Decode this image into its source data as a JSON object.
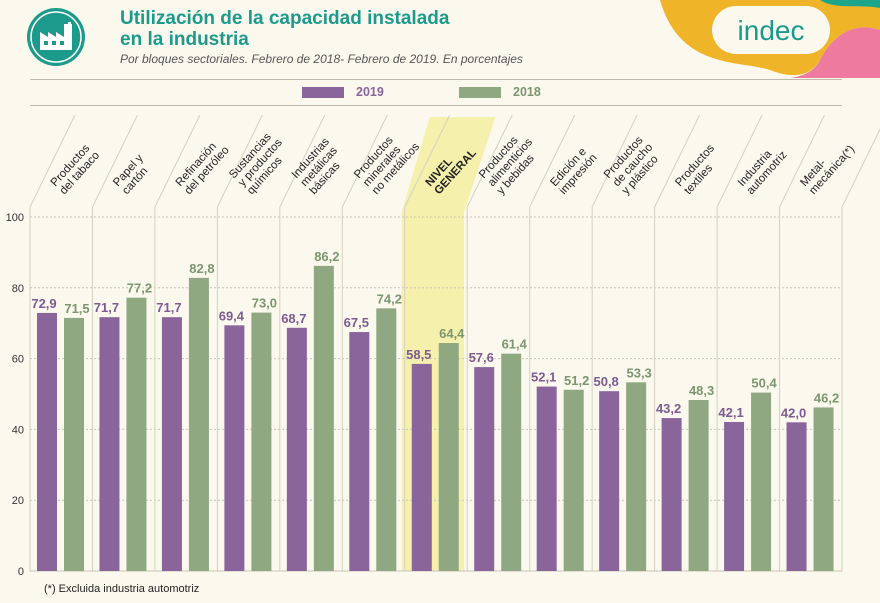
{
  "header": {
    "title_line1": "Utilización de la capacidad instalada",
    "title_line2": "en la industria",
    "subtitle": "Por bloques sectoriales. Febrero de 2018- Febrero  de 2019. En porcentajes",
    "brand": "indec",
    "icon": "factory-icon"
  },
  "footnote": "(*) Excluida industria automotriz",
  "colors": {
    "s2019": "#8a659c",
    "s2018": "#8fa882",
    "highlight": "#f4ee9b",
    "title": "#1c9a8c"
  },
  "chart_data": {
    "type": "bar",
    "categories": [
      [
        "Productos",
        "del tabaco"
      ],
      [
        "Papel y",
        "cartón"
      ],
      [
        "Refinación",
        "del petróleo"
      ],
      [
        "Sustancias",
        "y productos",
        "químicos"
      ],
      [
        "Industrias",
        "metálicas",
        "básicas"
      ],
      [
        "Productos",
        "minerales",
        "no metálicos"
      ],
      [
        "NIVEL",
        "GENERAL"
      ],
      [
        "Productos",
        "alimenticios",
        "y bebidas"
      ],
      [
        "Edición e",
        "impresión"
      ],
      [
        "Productos",
        "de caucho",
        "y plástico"
      ],
      [
        "Productos",
        "textiles"
      ],
      [
        "Industria",
        "automotriz"
      ],
      [
        "Metal-",
        "mecánica(*)"
      ]
    ],
    "highlight_index": 6,
    "series": [
      {
        "name": "2019",
        "values": [
          72.9,
          71.7,
          71.7,
          69.4,
          68.7,
          67.5,
          58.5,
          57.6,
          52.1,
          50.8,
          43.2,
          42.1,
          42.0
        ],
        "labels": [
          "72,9",
          "71,7",
          "71,7",
          "69,4",
          "68,7",
          "67,5",
          "58,5",
          "57,6",
          "52,1",
          "50,8",
          "43,2",
          "42,1",
          "42,0"
        ]
      },
      {
        "name": "2018",
        "values": [
          71.5,
          77.2,
          82.8,
          73.0,
          86.2,
          74.2,
          64.4,
          61.4,
          51.2,
          53.3,
          48.3,
          50.4,
          46.2
        ],
        "labels": [
          "71,5",
          "77,2",
          "82,8",
          "73,0",
          "86,2",
          "74,2",
          "64,4",
          "61,4",
          "51,2",
          "53,3",
          "48,3",
          "50,4",
          "46,2"
        ]
      }
    ],
    "ylim": [
      0,
      100
    ],
    "yticks": [
      "0",
      "20",
      "40",
      "60",
      "80",
      "100"
    ],
    "ytick_values": [
      0,
      20,
      40,
      60,
      80,
      100
    ],
    "grid": true,
    "legend": "top-center"
  }
}
